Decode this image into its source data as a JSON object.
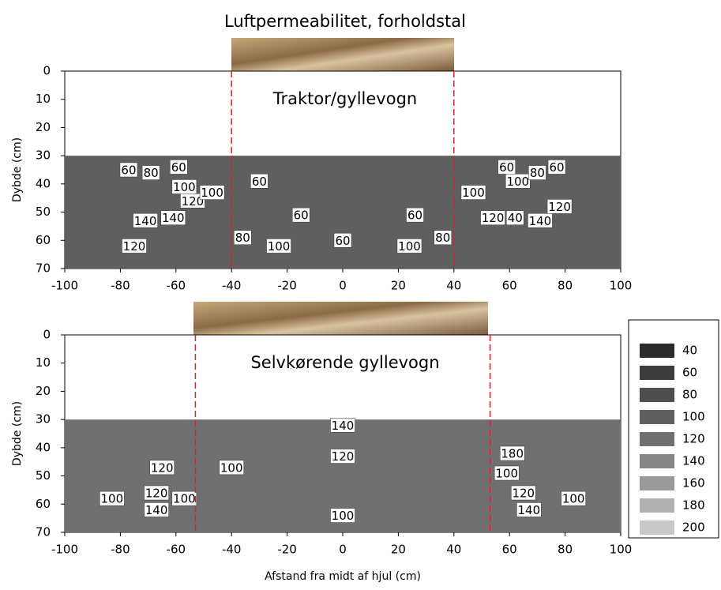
{
  "chart_data": [
    {
      "type": "contour",
      "title": "Luftpermeabilitet, forholdstal",
      "label": "Traktor/gyllevogn",
      "ylabel": "Dybde (cm)",
      "xlim": [
        -100,
        100
      ],
      "ylim": [
        70,
        0
      ],
      "xticks": [
        -100,
        -80,
        -60,
        -40,
        -20,
        0,
        20,
        40,
        60,
        80,
        100
      ],
      "yticks": [
        0,
        10,
        20,
        30,
        40,
        50,
        60,
        70
      ],
      "measured_depth": [
        30,
        70
      ],
      "base_level": 100,
      "wheel_edges": [
        -40,
        40
      ],
      "contour_labels": [
        {
          "x": -77,
          "y": 35,
          "value": 60
        },
        {
          "x": -69,
          "y": 36,
          "value": 80
        },
        {
          "x": -59,
          "y": 34,
          "value": 60
        },
        {
          "x": -57,
          "y": 41,
          "value": 100
        },
        {
          "x": -54,
          "y": 46,
          "value": 120
        },
        {
          "x": -47,
          "y": 43,
          "value": 100
        },
        {
          "x": -71,
          "y": 53,
          "value": 140
        },
        {
          "x": -61,
          "y": 52,
          "value": 140
        },
        {
          "x": -75,
          "y": 62,
          "value": 120
        },
        {
          "x": -30,
          "y": 39,
          "value": 60
        },
        {
          "x": -15,
          "y": 51,
          "value": 60
        },
        {
          "x": -36,
          "y": 59,
          "value": 80
        },
        {
          "x": -23,
          "y": 62,
          "value": 100
        },
        {
          "x": 0,
          "y": 60,
          "value": 60
        },
        {
          "x": 24,
          "y": 62,
          "value": 100
        },
        {
          "x": 26,
          "y": 51,
          "value": 60
        },
        {
          "x": 36,
          "y": 59,
          "value": 80
        },
        {
          "x": 47,
          "y": 43,
          "value": 100
        },
        {
          "x": 59,
          "y": 34,
          "value": 60
        },
        {
          "x": 63,
          "y": 39,
          "value": 100
        },
        {
          "x": 70,
          "y": 36,
          "value": 80
        },
        {
          "x": 77,
          "y": 34,
          "value": 60
        },
        {
          "x": 54,
          "y": 52,
          "value": 120
        },
        {
          "x": 62,
          "y": 52,
          "value": 40
        },
        {
          "x": 71,
          "y": 53,
          "value": 140
        },
        {
          "x": 78,
          "y": 48,
          "value": 120
        }
      ]
    },
    {
      "type": "contour",
      "label": "Selvkørende gyllevogn",
      "ylabel": "Dybde (cm)",
      "xlabel": "Afstand fra midt af hjul (cm)",
      "xlim": [
        -100,
        100
      ],
      "ylim": [
        70,
        0
      ],
      "xticks": [
        -100,
        -80,
        -60,
        -40,
        -20,
        0,
        20,
        40,
        60,
        80,
        100
      ],
      "yticks": [
        0,
        10,
        20,
        30,
        40,
        50,
        60,
        70
      ],
      "measured_depth": [
        30,
        70
      ],
      "base_level": 120,
      "wheel_edges": [
        -53,
        53
      ],
      "contour_labels": [
        {
          "x": 0,
          "y": 32,
          "value": 140
        },
        {
          "x": 0,
          "y": 43,
          "value": 120
        },
        {
          "x": 0,
          "y": 64,
          "value": 100
        },
        {
          "x": -65,
          "y": 47,
          "value": 120
        },
        {
          "x": -40,
          "y": 47,
          "value": 100
        },
        {
          "x": -83,
          "y": 58,
          "value": 100
        },
        {
          "x": -67,
          "y": 56,
          "value": 120
        },
        {
          "x": -57,
          "y": 58,
          "value": 100
        },
        {
          "x": -67,
          "y": 62,
          "value": 140
        },
        {
          "x": 61,
          "y": 42,
          "value": 180
        },
        {
          "x": 59,
          "y": 49,
          "value": 100
        },
        {
          "x": 65,
          "y": 56,
          "value": 120
        },
        {
          "x": 67,
          "y": 62,
          "value": 140
        },
        {
          "x": 83,
          "y": 58,
          "value": 100
        }
      ],
      "legend": {
        "levels": [
          40,
          60,
          80,
          100,
          120,
          140,
          160,
          180,
          200
        ],
        "colors": [
          "#2b2b2b",
          "#3d3d3d",
          "#4f4f4f",
          "#5f5f5f",
          "#707070",
          "#858585",
          "#9a9a9a",
          "#afafaf",
          "#c8c8c8"
        ]
      }
    }
  ]
}
